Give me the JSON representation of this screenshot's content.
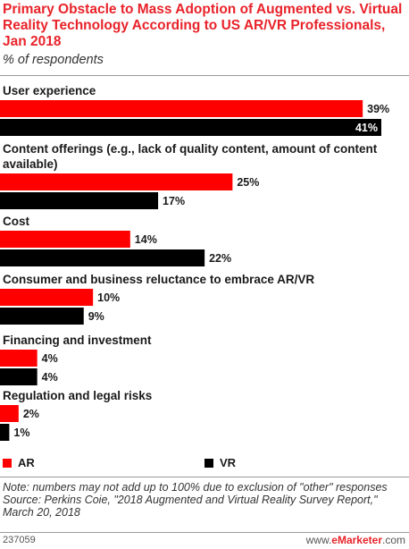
{
  "colors": {
    "ar": "#ff0000",
    "vr": "#000000",
    "accent": "#e8232a"
  },
  "chart_data": {
    "type": "bar",
    "orientation": "horizontal",
    "title": "Primary Obstacle to Mass Adoption of Augmented vs. Virtual Reality Technology According to US AR/VR Professionals, Jan 2018",
    "subtitle": "% of respondents",
    "categories": [
      "User experience",
      "Content offerings (e.g., lack of quality content, amount of content available)",
      "Cost",
      "Consumer and business reluctance to embrace AR/VR",
      "Financing and investment",
      "Regulation and legal risks"
    ],
    "series": [
      {
        "name": "AR",
        "values": [
          39,
          25,
          14,
          10,
          4,
          2
        ]
      },
      {
        "name": "VR",
        "values": [
          41,
          17,
          22,
          9,
          4,
          1
        ]
      }
    ],
    "value_suffix": "%",
    "xlim": [
      0,
      41
    ],
    "legend": "bottom"
  },
  "note": "Note: numbers may not add up to 100% due to exclusion of \"other\" responses",
  "source": "Source: Perkins Coie, \"2018 Augmented and Virtual Reality Survey Report,\" March 20, 2018",
  "footer": {
    "id": "237059",
    "brand_prefix": "www.",
    "brand": "eMarketer",
    "brand_suffix": ".com"
  }
}
